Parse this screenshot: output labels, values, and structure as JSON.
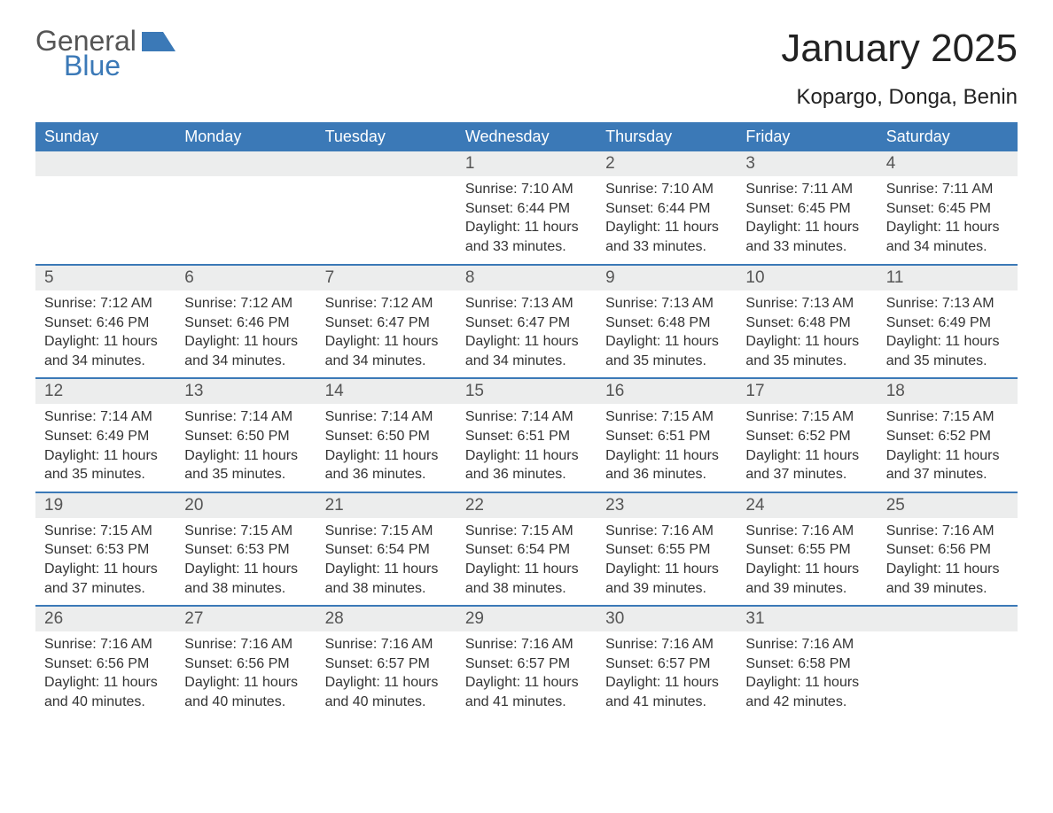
{
  "brand": {
    "line1": "General",
    "line2": "Blue"
  },
  "title": "January 2025",
  "location": "Kopargo, Donga, Benin",
  "colors": {
    "header_bg": "#3b79b7",
    "header_text": "#ffffff",
    "daynum_bg": "#eceded",
    "week_border": "#3b79b7",
    "body_text": "#333333",
    "logo_gray": "#555555",
    "logo_blue": "#3b79b7"
  },
  "day_headers": [
    "Sunday",
    "Monday",
    "Tuesday",
    "Wednesday",
    "Thursday",
    "Friday",
    "Saturday"
  ],
  "weeks": [
    [
      {
        "n": "",
        "empty": true
      },
      {
        "n": "",
        "empty": true
      },
      {
        "n": "",
        "empty": true
      },
      {
        "n": "1",
        "sunrise": "Sunrise: 7:10 AM",
        "sunset": "Sunset: 6:44 PM",
        "day1": "Daylight: 11 hours",
        "day2": "and 33 minutes."
      },
      {
        "n": "2",
        "sunrise": "Sunrise: 7:10 AM",
        "sunset": "Sunset: 6:44 PM",
        "day1": "Daylight: 11 hours",
        "day2": "and 33 minutes."
      },
      {
        "n": "3",
        "sunrise": "Sunrise: 7:11 AM",
        "sunset": "Sunset: 6:45 PM",
        "day1": "Daylight: 11 hours",
        "day2": "and 33 minutes."
      },
      {
        "n": "4",
        "sunrise": "Sunrise: 7:11 AM",
        "sunset": "Sunset: 6:45 PM",
        "day1": "Daylight: 11 hours",
        "day2": "and 34 minutes."
      }
    ],
    [
      {
        "n": "5",
        "sunrise": "Sunrise: 7:12 AM",
        "sunset": "Sunset: 6:46 PM",
        "day1": "Daylight: 11 hours",
        "day2": "and 34 minutes."
      },
      {
        "n": "6",
        "sunrise": "Sunrise: 7:12 AM",
        "sunset": "Sunset: 6:46 PM",
        "day1": "Daylight: 11 hours",
        "day2": "and 34 minutes."
      },
      {
        "n": "7",
        "sunrise": "Sunrise: 7:12 AM",
        "sunset": "Sunset: 6:47 PM",
        "day1": "Daylight: 11 hours",
        "day2": "and 34 minutes."
      },
      {
        "n": "8",
        "sunrise": "Sunrise: 7:13 AM",
        "sunset": "Sunset: 6:47 PM",
        "day1": "Daylight: 11 hours",
        "day2": "and 34 minutes."
      },
      {
        "n": "9",
        "sunrise": "Sunrise: 7:13 AM",
        "sunset": "Sunset: 6:48 PM",
        "day1": "Daylight: 11 hours",
        "day2": "and 35 minutes."
      },
      {
        "n": "10",
        "sunrise": "Sunrise: 7:13 AM",
        "sunset": "Sunset: 6:48 PM",
        "day1": "Daylight: 11 hours",
        "day2": "and 35 minutes."
      },
      {
        "n": "11",
        "sunrise": "Sunrise: 7:13 AM",
        "sunset": "Sunset: 6:49 PM",
        "day1": "Daylight: 11 hours",
        "day2": "and 35 minutes."
      }
    ],
    [
      {
        "n": "12",
        "sunrise": "Sunrise: 7:14 AM",
        "sunset": "Sunset: 6:49 PM",
        "day1": "Daylight: 11 hours",
        "day2": "and 35 minutes."
      },
      {
        "n": "13",
        "sunrise": "Sunrise: 7:14 AM",
        "sunset": "Sunset: 6:50 PM",
        "day1": "Daylight: 11 hours",
        "day2": "and 35 minutes."
      },
      {
        "n": "14",
        "sunrise": "Sunrise: 7:14 AM",
        "sunset": "Sunset: 6:50 PM",
        "day1": "Daylight: 11 hours",
        "day2": "and 36 minutes."
      },
      {
        "n": "15",
        "sunrise": "Sunrise: 7:14 AM",
        "sunset": "Sunset: 6:51 PM",
        "day1": "Daylight: 11 hours",
        "day2": "and 36 minutes."
      },
      {
        "n": "16",
        "sunrise": "Sunrise: 7:15 AM",
        "sunset": "Sunset: 6:51 PM",
        "day1": "Daylight: 11 hours",
        "day2": "and 36 minutes."
      },
      {
        "n": "17",
        "sunrise": "Sunrise: 7:15 AM",
        "sunset": "Sunset: 6:52 PM",
        "day1": "Daylight: 11 hours",
        "day2": "and 37 minutes."
      },
      {
        "n": "18",
        "sunrise": "Sunrise: 7:15 AM",
        "sunset": "Sunset: 6:52 PM",
        "day1": "Daylight: 11 hours",
        "day2": "and 37 minutes."
      }
    ],
    [
      {
        "n": "19",
        "sunrise": "Sunrise: 7:15 AM",
        "sunset": "Sunset: 6:53 PM",
        "day1": "Daylight: 11 hours",
        "day2": "and 37 minutes."
      },
      {
        "n": "20",
        "sunrise": "Sunrise: 7:15 AM",
        "sunset": "Sunset: 6:53 PM",
        "day1": "Daylight: 11 hours",
        "day2": "and 38 minutes."
      },
      {
        "n": "21",
        "sunrise": "Sunrise: 7:15 AM",
        "sunset": "Sunset: 6:54 PM",
        "day1": "Daylight: 11 hours",
        "day2": "and 38 minutes."
      },
      {
        "n": "22",
        "sunrise": "Sunrise: 7:15 AM",
        "sunset": "Sunset: 6:54 PM",
        "day1": "Daylight: 11 hours",
        "day2": "and 38 minutes."
      },
      {
        "n": "23",
        "sunrise": "Sunrise: 7:16 AM",
        "sunset": "Sunset: 6:55 PM",
        "day1": "Daylight: 11 hours",
        "day2": "and 39 minutes."
      },
      {
        "n": "24",
        "sunrise": "Sunrise: 7:16 AM",
        "sunset": "Sunset: 6:55 PM",
        "day1": "Daylight: 11 hours",
        "day2": "and 39 minutes."
      },
      {
        "n": "25",
        "sunrise": "Sunrise: 7:16 AM",
        "sunset": "Sunset: 6:56 PM",
        "day1": "Daylight: 11 hours",
        "day2": "and 39 minutes."
      }
    ],
    [
      {
        "n": "26",
        "sunrise": "Sunrise: 7:16 AM",
        "sunset": "Sunset: 6:56 PM",
        "day1": "Daylight: 11 hours",
        "day2": "and 40 minutes."
      },
      {
        "n": "27",
        "sunrise": "Sunrise: 7:16 AM",
        "sunset": "Sunset: 6:56 PM",
        "day1": "Daylight: 11 hours",
        "day2": "and 40 minutes."
      },
      {
        "n": "28",
        "sunrise": "Sunrise: 7:16 AM",
        "sunset": "Sunset: 6:57 PM",
        "day1": "Daylight: 11 hours",
        "day2": "and 40 minutes."
      },
      {
        "n": "29",
        "sunrise": "Sunrise: 7:16 AM",
        "sunset": "Sunset: 6:57 PM",
        "day1": "Daylight: 11 hours",
        "day2": "and 41 minutes."
      },
      {
        "n": "30",
        "sunrise": "Sunrise: 7:16 AM",
        "sunset": "Sunset: 6:57 PM",
        "day1": "Daylight: 11 hours",
        "day2": "and 41 minutes."
      },
      {
        "n": "31",
        "sunrise": "Sunrise: 7:16 AM",
        "sunset": "Sunset: 6:58 PM",
        "day1": "Daylight: 11 hours",
        "day2": "and 42 minutes."
      },
      {
        "n": "",
        "empty": true
      }
    ]
  ]
}
